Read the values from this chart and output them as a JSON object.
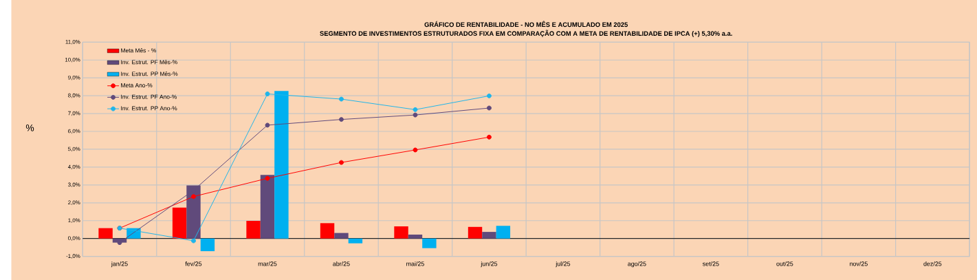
{
  "chart_data": {
    "type": "bar",
    "title": "GRÁFICO DE RENTABILIDADE - NO MÊS E ACUMULADO EM 2025",
    "subtitle": "SEGMENTO DE INVESTIMENTOS ESTRUTURADOS FIXA EM COMPARAÇÃO COM A META DE RENTABILIDADE DE IPCA (+) 5,30% a.a.",
    "ylabel": "%",
    "categories": [
      "jan/25",
      "fev/25",
      "mar/25",
      "abr/25",
      "mai/25",
      "jun/25",
      "jul/25",
      "ago/25",
      "set/25",
      "out/25",
      "nov/25",
      "dez/25"
    ],
    "series": [
      {
        "name": "Meta Mês - %",
        "color": "#ff0000",
        "values": [
          0.58,
          1.73,
          0.99,
          0.86,
          0.68,
          0.65,
          null,
          null,
          null,
          null,
          null,
          null
        ]
      },
      {
        "name": "Inv. Estrut. PF Mês-%",
        "color": "#604a7b",
        "values": [
          -0.23,
          2.97,
          3.56,
          0.31,
          0.22,
          0.37,
          null,
          null,
          null,
          null,
          null,
          null
        ]
      },
      {
        "name": "Inv. Estrut. PP Mês-%",
        "color": "#00b0f0",
        "values": [
          0.58,
          -0.71,
          8.26,
          -0.27,
          -0.54,
          0.71,
          null,
          null,
          null,
          null,
          null,
          null
        ]
      },
      {
        "name": "Meta Ano-%",
        "type": "line",
        "color": "#ff0000",
        "values": [
          0.58,
          2.35,
          3.37,
          4.26,
          4.96,
          5.68,
          null,
          null,
          null,
          null,
          null,
          null
        ]
      },
      {
        "name": "Inv. Estrut. PF Ano-%",
        "type": "line",
        "color": "#604a7b",
        "values": [
          -0.23,
          2.7,
          6.35,
          6.67,
          6.92,
          7.31,
          null,
          null,
          null,
          null,
          null,
          null
        ]
      },
      {
        "name": "Inv. Estrut. PP Ano-%",
        "type": "line",
        "color": "#1fb5ea",
        "values": [
          0.58,
          -0.13,
          8.1,
          7.81,
          7.22,
          7.99,
          null,
          null,
          null,
          null,
          null,
          null
        ]
      }
    ],
    "ylim": [
      -1,
      11
    ],
    "yticks": [
      {
        "value": -1,
        "label": "-1,0%"
      },
      {
        "value": 0,
        "label": "0,0%"
      },
      {
        "value": 1,
        "label": "1,0%"
      },
      {
        "value": 2,
        "label": "2,0%"
      },
      {
        "value": 3,
        "label": "3,0%"
      },
      {
        "value": 4,
        "label": "4,0%"
      },
      {
        "value": 5,
        "label": "5,0%"
      },
      {
        "value": 6,
        "label": "6,0%"
      },
      {
        "value": 7,
        "label": "7,0%"
      },
      {
        "value": 8,
        "label": "8,0%"
      },
      {
        "value": 9,
        "label": "9,0%"
      },
      {
        "value": 10,
        "label": "10,0%"
      },
      {
        "value": 11,
        "label": "11,0%"
      }
    ],
    "grid": true,
    "legend": "top left",
    "marker": "circle"
  }
}
